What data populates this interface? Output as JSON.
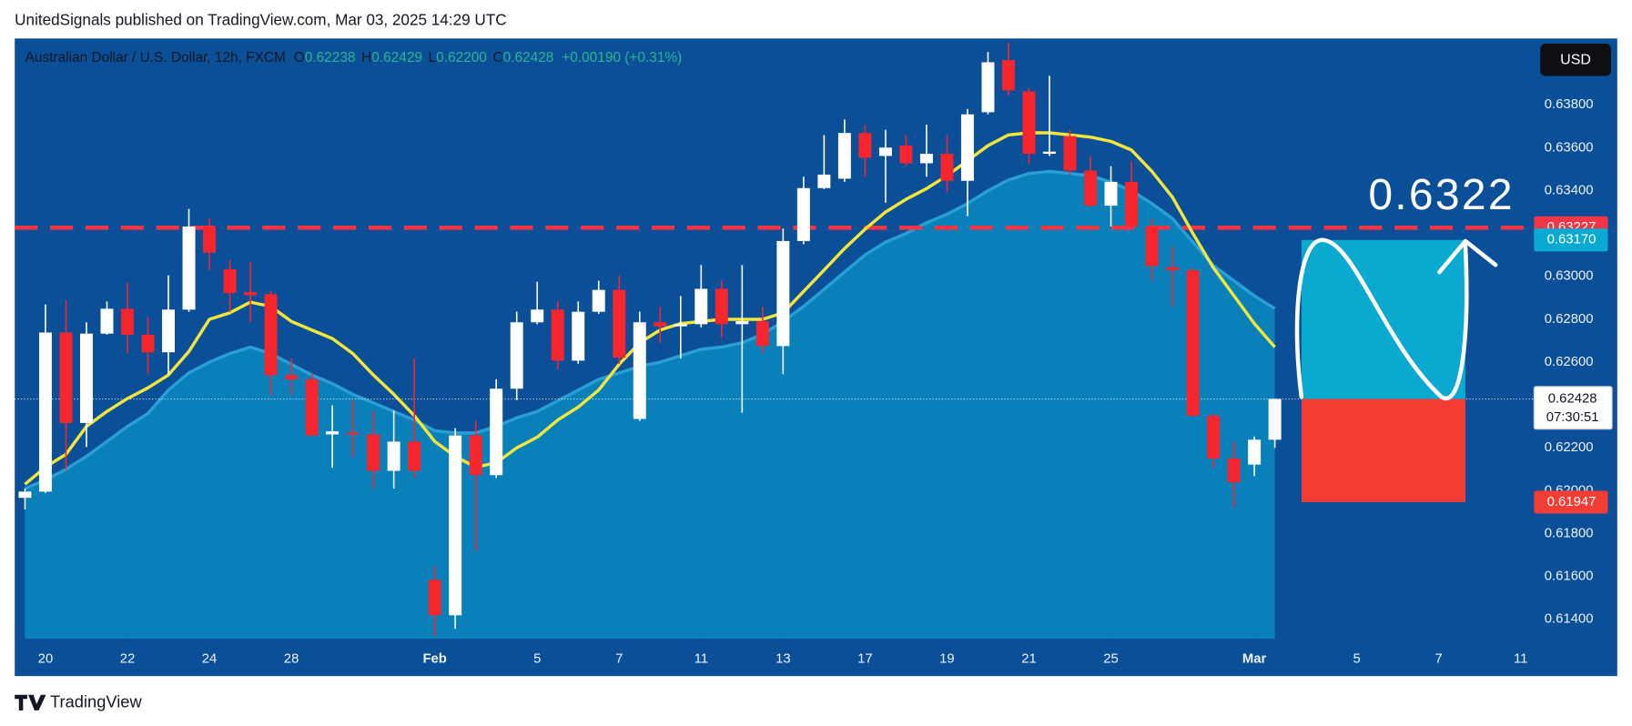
{
  "header": {
    "title": "UnitedSignals published on TradingView.com, Mar 03, 2025 14:29 UTC"
  },
  "footer": {
    "brand": "TradingView"
  },
  "chart_data": {
    "type": "candlestick",
    "currency": "USD",
    "legend": {
      "title": "Australian Dollar / U.S. Dollar, 12h, FXCM",
      "keys": [
        "O",
        "H",
        "L",
        "C"
      ],
      "low_label": "0.62200",
      "change": "+0.00190 (+0.31%)"
    },
    "candles": {
      "open": [
        0.61967,
        0.61996,
        0.62738,
        0.62316,
        0.62733,
        0.62849,
        0.62728,
        0.62646,
        0.62845,
        0.63233,
        0.63034,
        0.62927,
        0.62917,
        0.62539,
        0.6252,
        0.62263,
        0.62272,
        0.62263,
        0.62093,
        0.62229,
        0.61584,
        0.61419,
        0.62258,
        0.62073,
        0.62476,
        0.62786,
        0.62845,
        0.62607,
        0.62835,
        0.62937,
        0.62335,
        0.62786,
        0.62767,
        0.62777,
        0.62942,
        0.62777,
        0.62791,
        0.62675,
        0.63165,
        0.63412,
        0.63456,
        0.63669,
        0.63562,
        0.63611,
        0.63528,
        0.63572,
        0.63446,
        0.63766,
        0.64009,
        0.63863,
        0.63572,
        0.63654,
        0.63494,
        0.6333,
        0.63441,
        0.63233,
        0.63043,
        0.63029,
        0.6235,
        0.62151,
        0.62122,
        0.62238
      ],
      "high": [
        0.6201,
        0.62869,
        0.62888,
        0.62786,
        0.62883,
        0.62971,
        0.62811,
        0.63005,
        0.63315,
        0.63271,
        0.63077,
        0.63068,
        0.62932,
        0.62617,
        0.62544,
        0.62398,
        0.62423,
        0.62374,
        0.62374,
        0.62617,
        0.61647,
        0.62292,
        0.62326,
        0.6252,
        0.62835,
        0.62975,
        0.62883,
        0.62883,
        0.6298,
        0.63005,
        0.62835,
        0.62859,
        0.62908,
        0.63053,
        0.6298,
        0.63053,
        0.62859,
        0.63223,
        0.63465,
        0.63659,
        0.63732,
        0.63708,
        0.63684,
        0.63659,
        0.63708,
        0.63659,
        0.63781,
        0.64047,
        0.64091,
        0.63878,
        0.63936,
        0.63684,
        0.63562,
        0.63514,
        0.63538,
        0.63271,
        0.6314,
        0.63039,
        0.6236,
        0.62229,
        0.62253,
        0.62429
      ],
      "low": [
        0.61913,
        0.6199,
        0.62098,
        0.62204,
        0.62728,
        0.62641,
        0.62544,
        0.62544,
        0.62835,
        0.63029,
        0.62835,
        0.62786,
        0.62447,
        0.62447,
        0.62253,
        0.62107,
        0.62156,
        0.6201,
        0.6201,
        0.62059,
        0.61322,
        0.61356,
        0.61719,
        0.62059,
        0.62423,
        0.62777,
        0.62568,
        0.62592,
        0.62825,
        0.62592,
        0.62326,
        0.62689,
        0.62617,
        0.62762,
        0.62714,
        0.62364,
        0.62641,
        0.62544,
        0.6315,
        0.63407,
        0.63441,
        0.63465,
        0.63344,
        0.63514,
        0.63465,
        0.63393,
        0.63281,
        0.63756,
        0.63844,
        0.63524,
        0.63562,
        0.63475,
        0.6332,
        0.63233,
        0.63223,
        0.6298,
        0.62859,
        0.62345,
        0.62107,
        0.61923,
        0.62069,
        0.622
      ],
      "close": [
        0.61996,
        0.62738,
        0.62316,
        0.62733,
        0.62849,
        0.62728,
        0.62646,
        0.62845,
        0.63233,
        0.63111,
        0.62922,
        0.62912,
        0.62539,
        0.6252,
        0.62258,
        0.62277,
        0.62263,
        0.62093,
        0.62229,
        0.62093,
        0.61419,
        0.62258,
        0.62073,
        0.62476,
        0.62786,
        0.62845,
        0.62607,
        0.62835,
        0.62937,
        0.62621,
        0.62786,
        0.62767,
        0.62777,
        0.62942,
        0.62777,
        0.62791,
        0.62675,
        0.63165,
        0.63412,
        0.63475,
        0.63669,
        0.63553,
        0.63601,
        0.63528,
        0.63572,
        0.63446,
        0.63756,
        0.63999,
        0.63868,
        0.63572,
        0.63582,
        0.63494,
        0.6333,
        0.63441,
        0.63233,
        0.63048,
        0.63029,
        0.6235,
        0.62151,
        0.62039,
        0.62238,
        0.62428
      ]
    },
    "up_color": "#ffffff",
    "down_color": "#f7262e",
    "ma_fast": {
      "color": "#f3e63a",
      "values": [
        0.6203,
        0.6211,
        0.6217,
        0.623,
        0.6237,
        0.6243,
        0.6248,
        0.6254,
        0.6265,
        0.628,
        0.6283,
        0.6288,
        0.6286,
        0.6279,
        0.6275,
        0.6271,
        0.6264,
        0.6254,
        0.6245,
        0.6235,
        0.6223,
        0.6216,
        0.6211,
        0.6213,
        0.622,
        0.6225,
        0.6233,
        0.6239,
        0.6247,
        0.6259,
        0.6269,
        0.6275,
        0.6278,
        0.6279,
        0.628,
        0.628,
        0.628,
        0.6283,
        0.6293,
        0.6303,
        0.6313,
        0.6322,
        0.633,
        0.6336,
        0.6341,
        0.6347,
        0.6354,
        0.6361,
        0.6366,
        0.6367,
        0.6367,
        0.6366,
        0.6365,
        0.6363,
        0.6359,
        0.6349,
        0.6337,
        0.632,
        0.6304,
        0.6291,
        0.6278,
        0.6267
      ]
    },
    "ma_slow": {
      "color": "#2a9fd3",
      "fill": "#0a80bb",
      "values": [
        0.6201,
        0.6205,
        0.621,
        0.6216,
        0.6223,
        0.623,
        0.6236,
        0.6247,
        0.6255,
        0.626,
        0.6264,
        0.6267,
        0.6264,
        0.6259,
        0.6254,
        0.625,
        0.6245,
        0.6241,
        0.6237,
        0.6233,
        0.6228,
        0.6227,
        0.6227,
        0.623,
        0.6234,
        0.6237,
        0.6242,
        0.6247,
        0.6252,
        0.6255,
        0.6258,
        0.626,
        0.6263,
        0.6266,
        0.6267,
        0.6269,
        0.6273,
        0.6279,
        0.6286,
        0.6294,
        0.6302,
        0.631,
        0.6316,
        0.632,
        0.6325,
        0.6329,
        0.6334,
        0.634,
        0.6345,
        0.6348,
        0.6349,
        0.6348,
        0.6347,
        0.6344,
        0.634,
        0.6334,
        0.6327,
        0.6316,
        0.6305,
        0.6298,
        0.6291,
        0.6285
      ]
    },
    "xlim": [
      -0.5,
      73.7
    ],
    "xticks": [
      {
        "value": 1,
        "label": "20"
      },
      {
        "value": 5,
        "label": "22"
      },
      {
        "value": 9,
        "label": "24"
      },
      {
        "value": 13,
        "label": "28"
      },
      {
        "value": 20,
        "label": "Feb"
      },
      {
        "value": 25,
        "label": "5"
      },
      {
        "value": 29,
        "label": "7"
      },
      {
        "value": 33,
        "label": "11"
      },
      {
        "value": 37,
        "label": "13"
      },
      {
        "value": 41,
        "label": "17"
      },
      {
        "value": 45,
        "label": "19"
      },
      {
        "value": 49,
        "label": "21"
      },
      {
        "value": 53,
        "label": "25"
      },
      {
        "value": 60,
        "label": "Mar"
      },
      {
        "value": 65,
        "label": "5"
      },
      {
        "value": 69,
        "label": "7"
      },
      {
        "value": 73,
        "label": "11"
      }
    ],
    "ylim": [
      0.6131,
      0.6411
    ],
    "yticks": [
      {
        "value": 0.614,
        "label": "0.61400"
      },
      {
        "value": 0.616,
        "label": "0.61600"
      },
      {
        "value": 0.618,
        "label": "0.61800"
      },
      {
        "value": 0.62,
        "label": "0.62000"
      },
      {
        "value": 0.622,
        "label": "0.62200"
      },
      {
        "value": 0.624,
        "label": "0.62400"
      },
      {
        "value": 0.626,
        "label": "0.62600"
      },
      {
        "value": 0.628,
        "label": "0.62800"
      },
      {
        "value": 0.63,
        "label": "0.63000"
      },
      {
        "value": 0.632,
        "label": "0.63200"
      },
      {
        "value": 0.634,
        "label": "0.63400"
      },
      {
        "value": 0.636,
        "label": "0.63600"
      },
      {
        "value": 0.638,
        "label": "0.63800"
      }
    ],
    "hline": {
      "value": 0.63227,
      "color": "#f23645"
    },
    "target": {
      "value": 0.6317,
      "label": "0.63170",
      "color": "#0aa9cf"
    },
    "stop": {
      "value": 0.61947,
      "color": "#f23c34"
    },
    "bid": {
      "value": 0.62419,
      "color": "#7f8592"
    },
    "countdown": "07:30:51",
    "annotation": "0.6322"
  }
}
